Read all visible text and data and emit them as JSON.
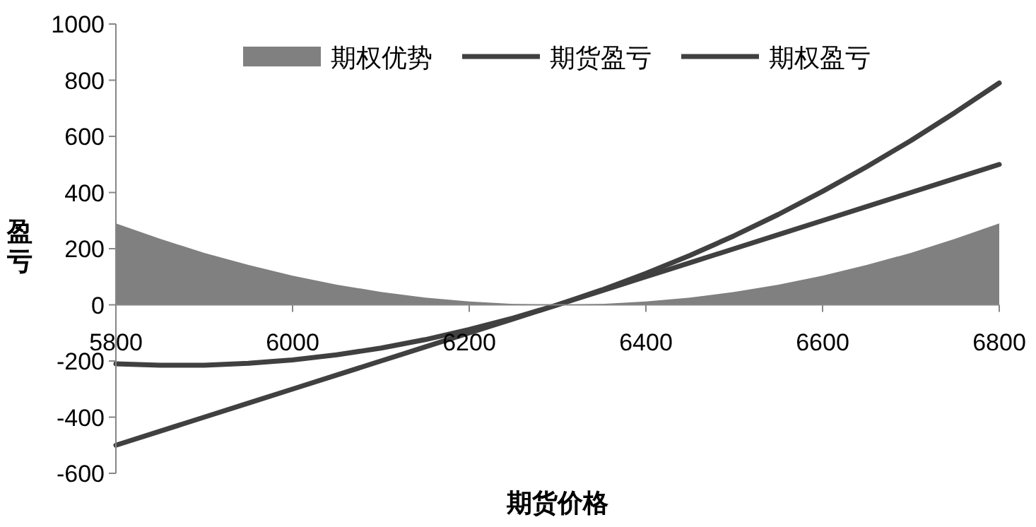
{
  "chart_data": {
    "type": "line",
    "xlabel": "期货价格",
    "ylabel": "盈亏",
    "x": [
      5800,
      5850,
      5900,
      5950,
      6000,
      6050,
      6100,
      6150,
      6200,
      6250,
      6300,
      6350,
      6400,
      6450,
      6500,
      6550,
      6600,
      6650,
      6700,
      6750,
      6800
    ],
    "xlim": [
      5800,
      6800
    ],
    "xticks": [
      5800,
      6000,
      6200,
      6400,
      6600,
      6800
    ],
    "ylim": [
      -600,
      1000
    ],
    "yticks": [
      -600,
      -400,
      -200,
      0,
      200,
      400,
      600,
      800,
      1000
    ],
    "legend": "top",
    "series": [
      {
        "name": "期权优势",
        "type": "area",
        "color": "#808080",
        "values": [
          290,
          235,
          185,
          142,
          104,
          72,
          46,
          26,
          12,
          3,
          0,
          3,
          12,
          26,
          46,
          72,
          104,
          142,
          185,
          235,
          290
        ]
      },
      {
        "name": "期货盈亏",
        "color": "#404040",
        "values": [
          -500,
          -450,
          -400,
          -350,
          -300,
          -250,
          -200,
          -150,
          -100,
          -50,
          0,
          50,
          100,
          150,
          200,
          250,
          300,
          350,
          400,
          450,
          500
        ]
      },
      {
        "name": "期权盈亏",
        "color": "#404040",
        "values": [
          -210,
          -215,
          -215,
          -208,
          -196,
          -178,
          -154,
          -124,
          -88,
          -47,
          0,
          53,
          112,
          176,
          246,
          322,
          404,
          492,
          585,
          685,
          790
        ]
      }
    ]
  }
}
